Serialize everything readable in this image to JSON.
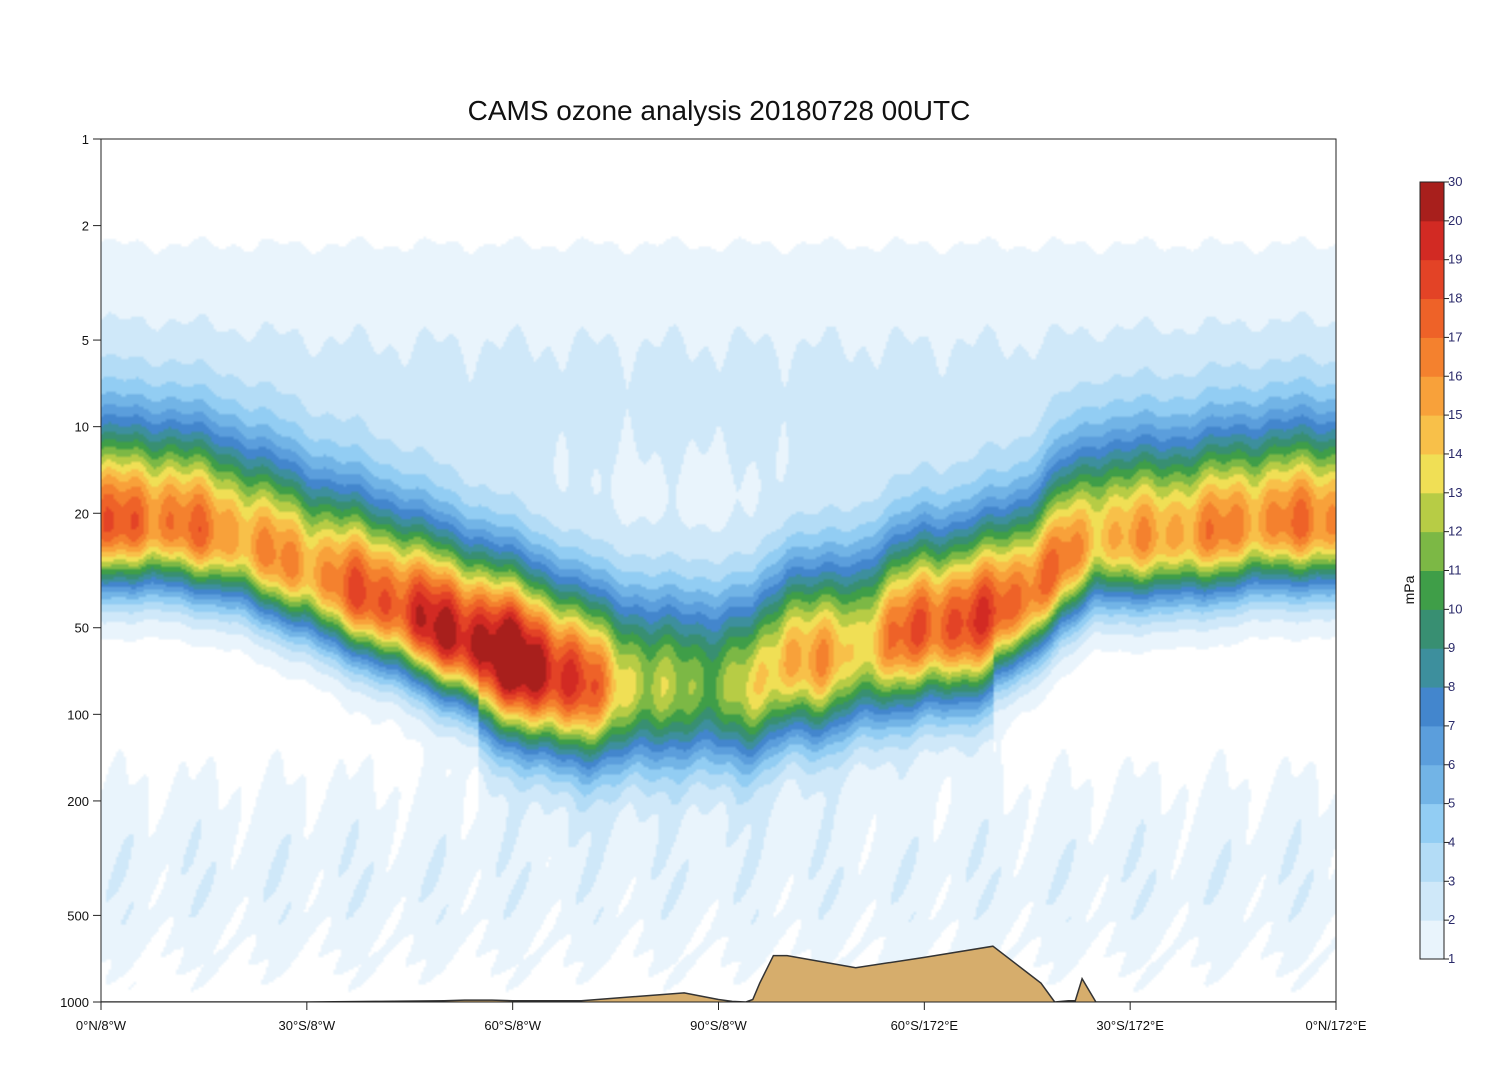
{
  "chart_data": {
    "type": "contour",
    "title": "CAMS ozone analysis 20180728 00UTC",
    "xlabel": "",
    "ylabel": "",
    "y_scale": "log",
    "y_inverted": true,
    "y_range": [
      1,
      1000
    ],
    "y_ticks": [
      1,
      2,
      5,
      10,
      20,
      50,
      100,
      200,
      500,
      1000
    ],
    "y_tick_labels": [
      "1",
      "2",
      "5",
      "10",
      "20",
      "50",
      "100",
      "200",
      "500",
      "1000"
    ],
    "x_ticks": [
      0,
      30,
      60,
      90,
      120,
      150,
      180
    ],
    "x_tick_labels": [
      "0°N/8°W",
      "30°S/8°W",
      "60°S/8°W",
      "90°S/8°W",
      "60°S/172°E",
      "30°S/172°E",
      "0°N/172°E"
    ],
    "x_range": [
      0,
      180
    ],
    "colorbar": {
      "unit": "mPa",
      "levels": [
        1,
        2,
        3,
        4,
        5,
        6,
        7,
        8,
        9,
        10,
        11,
        12,
        13,
        14,
        15,
        16,
        17,
        18,
        19,
        20,
        30
      ],
      "labels": [
        "1",
        "2",
        "3",
        "4",
        "5",
        "6",
        "7",
        "8",
        "9",
        "10",
        "11",
        "12",
        "13",
        "14",
        "15",
        "16",
        "17",
        "18",
        "19",
        "20",
        "30"
      ],
      "colors": [
        "#e9f4fc",
        "#cfe8f9",
        "#b3dcf6",
        "#92cdf3",
        "#72b4e6",
        "#5b9edc",
        "#4386cd",
        "#3d8f9d",
        "#388f72",
        "#3f9e48",
        "#7cb845",
        "#b7cc45",
        "#f0df55",
        "#f8c049",
        "#f8a13a",
        "#f4812e",
        "#ee6228",
        "#e34326",
        "#d22a23",
        "#a81f1c"
      ]
    },
    "terrain_color": "#d6ad6c",
    "field": {
      "x": [
        0,
        10,
        20,
        30,
        37,
        45,
        50,
        55,
        60,
        65,
        70,
        75,
        80,
        85,
        90,
        95,
        100,
        105,
        110,
        115,
        120,
        125,
        130,
        135,
        140,
        145,
        150,
        160,
        170,
        180
      ],
      "ozone_max_mPa": [
        16.0,
        15.8,
        14.7,
        15.0,
        16.8,
        18.5,
        19.6,
        20.8,
        21.5,
        20.6,
        18.0,
        14.5,
        11.9,
        11.5,
        11.4,
        12.5,
        15.5,
        15.0,
        13.5,
        16.0,
        17.5,
        18.2,
        17.5,
        17.0,
        15.5,
        14.0,
        14.0,
        14.8,
        15.0,
        15.3
      ],
      "peak_pressure_hPa": [
        22,
        22,
        25,
        32,
        38,
        45,
        52,
        58,
        65,
        72,
        78,
        80,
        80,
        80,
        80,
        80,
        65,
        65,
        60,
        55,
        50,
        50,
        45,
        40,
        30,
        25,
        25,
        24,
        22,
        22
      ]
    },
    "terrain": {
      "x": [
        0,
        30,
        40,
        50,
        53,
        55,
        57,
        60,
        65,
        70,
        85,
        90,
        92,
        94,
        95,
        96,
        98,
        100,
        110,
        120,
        130,
        135,
        137,
        139,
        141,
        142,
        143,
        145,
        160,
        170,
        180
      ],
      "surface_pressure_hPa": [
        1000,
        1000,
        995,
        990,
        985,
        985,
        985,
        990,
        990,
        990,
        930,
        980,
        995,
        1000,
        980,
        860,
        690,
        690,
        760,
        700,
        640,
        790,
        860,
        1000,
        990,
        990,
        830,
        1000,
        1000,
        1000,
        1000
      ]
    }
  }
}
